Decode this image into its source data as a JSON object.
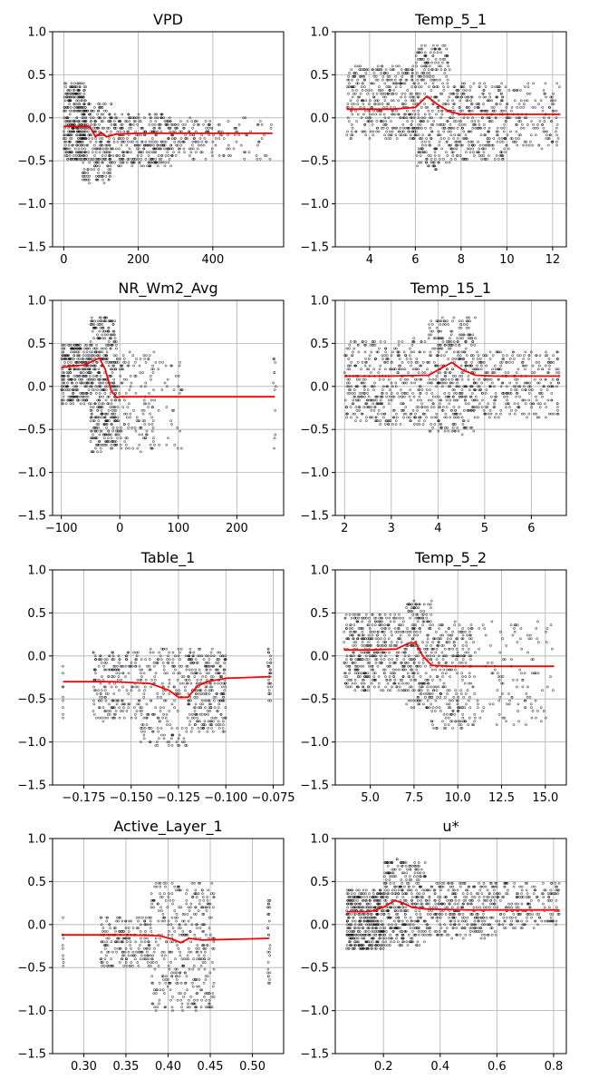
{
  "figure": {
    "colors": {
      "fit": "#ff0000",
      "points": "#000000",
      "grid": "#b0b0b0",
      "frame": "#000000"
    }
  },
  "chart_data": [
    {
      "type": "scatter",
      "title": "VPD",
      "xlim": [
        -30,
        590
      ],
      "ylim": [
        -1.5,
        1.0
      ],
      "xticks": [
        0,
        200,
        400
      ],
      "xtick_labels": [
        "0",
        "200",
        "400"
      ],
      "yticks": [
        1.0,
        0.5,
        0.0,
        -0.5,
        -1.0,
        -1.5
      ],
      "ytick_labels": [
        "1.0",
        "0.5",
        "0.0",
        "−0.5",
        "−1.0",
        "−1.5"
      ],
      "grid": true,
      "fit_line": {
        "x": [
          0,
          40,
          70,
          85,
          100,
          115,
          140,
          200,
          300,
          400,
          560
        ],
        "y": [
          -0.1,
          -0.1,
          -0.1,
          -0.22,
          -0.17,
          -0.22,
          -0.19,
          -0.18,
          -0.18,
          -0.18,
          -0.18
        ]
      },
      "point_clusters": [
        {
          "x": [
            0,
            60
          ],
          "y": [
            -0.5,
            0.4
          ],
          "n": 320
        },
        {
          "x": [
            50,
            130
          ],
          "y": [
            -0.75,
            0.2
          ],
          "n": 260
        },
        {
          "x": [
            130,
            290
          ],
          "y": [
            -0.55,
            0.05
          ],
          "n": 300
        },
        {
          "x": [
            290,
            400
          ],
          "y": [
            -0.5,
            0.0
          ],
          "n": 110
        },
        {
          "x": [
            400,
            560
          ],
          "y": [
            -0.5,
            0.0
          ],
          "n": 60
        }
      ]
    },
    {
      "type": "scatter",
      "title": "Temp_5_1",
      "xlim": [
        2.5,
        12.6
      ],
      "ylim": [
        -1.5,
        1.0
      ],
      "xticks": [
        4,
        6,
        8,
        10,
        12
      ],
      "xtick_labels": [
        "4",
        "6",
        "8",
        "10",
        "12"
      ],
      "yticks": [
        1.0,
        0.5,
        0.0,
        -0.5,
        -1.0,
        -1.5
      ],
      "ytick_labels": [
        "1.0",
        "0.5",
        "0.0",
        "−0.5",
        "−1.0",
        "−1.5"
      ],
      "grid": true,
      "fit_line": {
        "x": [
          3.0,
          5.0,
          6.0,
          6.5,
          7.0,
          7.5,
          8.0,
          9.0,
          10.0,
          12.3
        ],
        "y": [
          0.1,
          0.1,
          0.12,
          0.25,
          0.15,
          0.07,
          0.04,
          0.04,
          0.04,
          0.04
        ]
      },
      "point_clusters": [
        {
          "x": [
            3.0,
            6.0
          ],
          "y": [
            -0.25,
            0.6
          ],
          "n": 380
        },
        {
          "x": [
            6.0,
            7.5
          ],
          "y": [
            -0.6,
            0.85
          ],
          "n": 300
        },
        {
          "x": [
            7.5,
            10.0
          ],
          "y": [
            -0.5,
            0.4
          ],
          "n": 320
        },
        {
          "x": [
            10.0,
            12.3
          ],
          "y": [
            -0.35,
            0.4
          ],
          "n": 140
        }
      ]
    },
    {
      "type": "scatter",
      "title": "NR_Wm2_Avg",
      "xlim": [
        -115,
        280
      ],
      "ylim": [
        -1.5,
        1.0
      ],
      "xticks": [
        -100,
        0,
        100,
        200
      ],
      "xtick_labels": [
        "−100",
        "0",
        "100",
        "200"
      ],
      "yticks": [
        1.0,
        0.5,
        0.0,
        -0.5,
        -1.0,
        -1.5
      ],
      "ytick_labels": [
        "1.0",
        "0.5",
        "0.0",
        "−0.5",
        "−1.0",
        "−1.5"
      ],
      "grid": true,
      "fit_line": {
        "x": [
          -100,
          -60,
          -35,
          -25,
          -15,
          -5,
          0,
          20,
          100,
          265
        ],
        "y": [
          0.22,
          0.25,
          0.33,
          0.2,
          -0.05,
          -0.13,
          -0.12,
          -0.12,
          -0.12,
          -0.12
        ]
      },
      "point_clusters": [
        {
          "x": [
            -100,
            -50
          ],
          "y": [
            -0.2,
            0.5
          ],
          "n": 300
        },
        {
          "x": [
            -50,
            -5
          ],
          "y": [
            -0.75,
            0.8
          ],
          "n": 420
        },
        {
          "x": [
            -5,
            60
          ],
          "y": [
            -0.75,
            0.4
          ],
          "n": 150
        },
        {
          "x": [
            60,
            110
          ],
          "y": [
            -0.75,
            0.3
          ],
          "n": 35
        },
        {
          "x": [
            262,
            268
          ],
          "y": [
            -0.75,
            0.35
          ],
          "n": 12
        }
      ]
    },
    {
      "type": "scatter",
      "title": "Temp_15_1",
      "xlim": [
        1.8,
        6.75
      ],
      "ylim": [
        -1.5,
        1.0
      ],
      "xticks": [
        2,
        3,
        4,
        5,
        6
      ],
      "xtick_labels": [
        "2",
        "3",
        "4",
        "5",
        "6"
      ],
      "yticks": [
        1.0,
        0.5,
        0.0,
        -0.5,
        -1.0,
        -1.5
      ],
      "ytick_labels": [
        "1.0",
        "0.5",
        "0.0",
        "−0.5",
        "−1.0",
        "−1.5"
      ],
      "grid": true,
      "fit_line": {
        "x": [
          2.0,
          3.0,
          3.8,
          4.1,
          4.3,
          4.5,
          4.8,
          5.2,
          6.0,
          6.6
        ],
        "y": [
          0.12,
          0.12,
          0.13,
          0.22,
          0.28,
          0.2,
          0.13,
          0.12,
          0.12,
          0.12
        ]
      },
      "point_clusters": [
        {
          "x": [
            2.0,
            3.8
          ],
          "y": [
            -0.45,
            0.55
          ],
          "n": 420
        },
        {
          "x": [
            3.8,
            4.8
          ],
          "y": [
            -0.55,
            0.8
          ],
          "n": 380
        },
        {
          "x": [
            4.8,
            6.6
          ],
          "y": [
            -0.35,
            0.4
          ],
          "n": 300
        }
      ]
    },
    {
      "type": "scatter",
      "title": "Table_1",
      "xlim": [
        -0.1915,
        -0.0695
      ],
      "ylim": [
        -1.5,
        1.0
      ],
      "xticks": [
        -0.175,
        -0.15,
        -0.125,
        -0.1,
        -0.075
      ],
      "xtick_labels": [
        "−0.175",
        "−0.150",
        "−0.125",
        "−0.100",
        "−0.075"
      ],
      "yticks": [
        1.0,
        0.5,
        0.0,
        -0.5,
        -1.0,
        -1.5
      ],
      "ytick_labels": [
        "1.0",
        "0.5",
        "0.0",
        "−0.5",
        "−1.0",
        "−1.5"
      ],
      "grid": true,
      "fit_line": {
        "x": [
          -0.186,
          -0.16,
          -0.14,
          -0.13,
          -0.125,
          -0.12,
          -0.115,
          -0.11,
          -0.1,
          -0.076
        ],
        "y": [
          -0.3,
          -0.3,
          -0.32,
          -0.4,
          -0.48,
          -0.48,
          -0.35,
          -0.3,
          -0.26,
          -0.24
        ]
      },
      "point_clusters": [
        {
          "x": [
            -0.186,
            -0.186
          ],
          "y": [
            -0.75,
            0.05
          ],
          "n": 10
        },
        {
          "x": [
            -0.17,
            -0.145
          ],
          "y": [
            -0.75,
            0.05
          ],
          "n": 200
        },
        {
          "x": [
            -0.145,
            -0.12
          ],
          "y": [
            -1.05,
            0.1
          ],
          "n": 200
        },
        {
          "x": [
            -0.12,
            -0.1
          ],
          "y": [
            -0.9,
            0.1
          ],
          "n": 280
        },
        {
          "x": [
            -0.078,
            -0.076
          ],
          "y": [
            -0.6,
            0.1
          ],
          "n": 30
        }
      ]
    },
    {
      "type": "scatter",
      "title": "Temp_5_2",
      "xlim": [
        3.0,
        16.2
      ],
      "ylim": [
        -1.5,
        1.0
      ],
      "xticks": [
        5.0,
        7.5,
        10.0,
        12.5,
        15.0
      ],
      "xtick_labels": [
        "5.0",
        "7.5",
        "10.0",
        "12.5",
        "15.0"
      ],
      "yticks": [
        1.0,
        0.5,
        0.0,
        -0.5,
        -1.0,
        -1.5
      ],
      "ytick_labels": [
        "1.0",
        "0.5",
        "0.0",
        "−0.5",
        "−1.0",
        "−1.5"
      ],
      "grid": true,
      "fit_line": {
        "x": [
          3.5,
          5.0,
          6.5,
          7.2,
          7.6,
          8.0,
          8.5,
          9.5,
          12.0,
          15.5
        ],
        "y": [
          0.07,
          0.07,
          0.08,
          0.15,
          0.15,
          0.0,
          -0.11,
          -0.12,
          -0.12,
          -0.12
        ]
      },
      "point_clusters": [
        {
          "x": [
            3.5,
            7.0
          ],
          "y": [
            -0.4,
            0.5
          ],
          "n": 420
        },
        {
          "x": [
            7.0,
            8.5
          ],
          "y": [
            -0.6,
            0.65
          ],
          "n": 220
        },
        {
          "x": [
            8.5,
            11.0
          ],
          "y": [
            -0.85,
            0.4
          ],
          "n": 260
        },
        {
          "x": [
            11.0,
            15.5
          ],
          "y": [
            -0.8,
            0.4
          ],
          "n": 120
        }
      ]
    },
    {
      "type": "scatter",
      "title": "Active_Layer_1",
      "xlim": [
        0.263,
        0.537
      ],
      "ylim": [
        -1.5,
        1.0
      ],
      "xticks": [
        0.3,
        0.35,
        0.4,
        0.45,
        0.5
      ],
      "xtick_labels": [
        "0.30",
        "0.35",
        "0.40",
        "0.45",
        "0.50"
      ],
      "yticks": [
        1.0,
        0.5,
        0.0,
        -0.5,
        -1.0,
        -1.5
      ],
      "ytick_labels": [
        "1.0",
        "0.5",
        "0.0",
        "−0.5",
        "−1.0",
        "−1.5"
      ],
      "grid": true,
      "fit_line": {
        "x": [
          0.275,
          0.35,
          0.39,
          0.405,
          0.415,
          0.425,
          0.44,
          0.52
        ],
        "y": [
          -0.12,
          -0.12,
          -0.13,
          -0.17,
          -0.21,
          -0.16,
          -0.18,
          -0.16
        ]
      },
      "point_clusters": [
        {
          "x": [
            0.275,
            0.276
          ],
          "y": [
            -0.5,
            0.1
          ],
          "n": 10
        },
        {
          "x": [
            0.32,
            0.38
          ],
          "y": [
            -0.5,
            0.1
          ],
          "n": 200
        },
        {
          "x": [
            0.38,
            0.455
          ],
          "y": [
            -1.0,
            0.5
          ],
          "n": 380
        },
        {
          "x": [
            0.518,
            0.521
          ],
          "y": [
            -0.7,
            0.3
          ],
          "n": 30
        }
      ]
    },
    {
      "type": "scatter",
      "title": "u*",
      "xlim": [
        0.03,
        0.845
      ],
      "ylim": [
        -1.5,
        1.0
      ],
      "xticks": [
        0.2,
        0.4,
        0.6,
        0.8
      ],
      "xtick_labels": [
        "0.2",
        "0.4",
        "0.6",
        "0.8"
      ],
      "yticks": [
        1.0,
        0.5,
        0.0,
        -0.5,
        -1.0,
        -1.5
      ],
      "ytick_labels": [
        "1.0",
        "0.5",
        "0.0",
        "−0.5",
        "−1.0",
        "−1.5"
      ],
      "grid": true,
      "fit_line": {
        "x": [
          0.07,
          0.15,
          0.2,
          0.24,
          0.27,
          0.3,
          0.35,
          0.5,
          0.82
        ],
        "y": [
          0.15,
          0.15,
          0.2,
          0.28,
          0.25,
          0.2,
          0.18,
          0.17,
          0.17
        ]
      },
      "point_clusters": [
        {
          "x": [
            0.07,
            0.2
          ],
          "y": [
            -0.3,
            0.4
          ],
          "n": 420
        },
        {
          "x": [
            0.2,
            0.35
          ],
          "y": [
            -0.25,
            0.75
          ],
          "n": 360
        },
        {
          "x": [
            0.35,
            0.6
          ],
          "y": [
            -0.15,
            0.5
          ],
          "n": 320
        },
        {
          "x": [
            0.6,
            0.82
          ],
          "y": [
            -0.05,
            0.5
          ],
          "n": 180
        }
      ]
    }
  ]
}
